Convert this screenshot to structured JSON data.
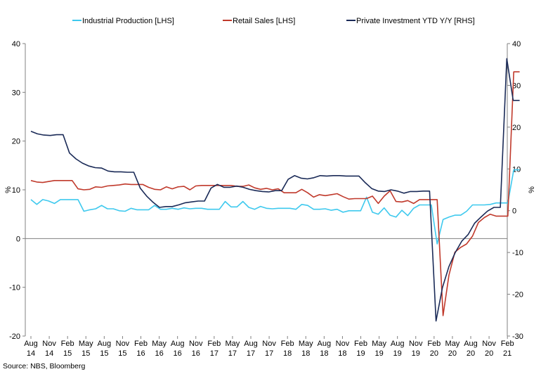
{
  "source": "Source: NBS, Bloomberg",
  "colors": {
    "industrial": "#3ec9ee",
    "retail": "#c0392b",
    "investment": "#1a2a57",
    "axis": "#808080"
  },
  "chart_data": {
    "type": "line",
    "title": "",
    "legend": "top",
    "grid": false,
    "x_labels": [
      [
        "Aug",
        "14"
      ],
      [
        "Nov",
        "14"
      ],
      [
        "Feb",
        "15"
      ],
      [
        "May",
        "15"
      ],
      [
        "Aug",
        "15"
      ],
      [
        "Nov",
        "15"
      ],
      [
        "Feb",
        "16"
      ],
      [
        "May",
        "16"
      ],
      [
        "Aug",
        "16"
      ],
      [
        "Nov",
        "16"
      ],
      [
        "Feb",
        "17"
      ],
      [
        "May",
        "17"
      ],
      [
        "Aug",
        "17"
      ],
      [
        "Nov",
        "17"
      ],
      [
        "Feb",
        "18"
      ],
      [
        "May",
        "18"
      ],
      [
        "Aug",
        "18"
      ],
      [
        "Nov",
        "18"
      ],
      [
        "Feb",
        "19"
      ],
      [
        "May",
        "19"
      ],
      [
        "Aug",
        "19"
      ],
      [
        "Nov",
        "19"
      ],
      [
        "Feb",
        "20"
      ],
      [
        "May",
        "20"
      ],
      [
        "Aug",
        "20"
      ],
      [
        "Nov",
        "20"
      ],
      [
        "Feb",
        "21"
      ]
    ],
    "x_start_month": "2014-08",
    "left_axis": {
      "label": "%",
      "ylim": [
        -20,
        40
      ],
      "ticks": [
        -20,
        -10,
        0,
        10,
        20,
        30,
        40
      ]
    },
    "right_axis": {
      "label": "%",
      "ylim": [
        -30,
        40
      ],
      "ticks": [
        -30,
        -20,
        -10,
        0,
        10,
        20,
        30,
        40
      ]
    },
    "series": [
      {
        "name": "Industrial Production [LHS]",
        "axis": "left",
        "color_key": "industrial",
        "values": [
          8.0,
          7.0,
          8.0,
          7.7,
          7.2,
          8.0,
          8.0,
          8.0,
          8.0,
          5.6,
          5.9,
          6.1,
          6.8,
          6.1,
          6.1,
          5.7,
          5.6,
          6.2,
          5.9,
          5.9,
          5.9,
          6.8,
          6.0,
          6.0,
          6.2,
          6.0,
          6.3,
          6.1,
          6.2,
          6.2,
          6.0,
          6.0,
          6.0,
          7.6,
          6.5,
          6.5,
          7.6,
          6.4,
          6.0,
          6.6,
          6.2,
          6.1,
          6.2,
          6.2,
          6.2,
          6.0,
          7.0,
          6.8,
          6.0,
          6.0,
          6.1,
          5.8,
          6.0,
          5.4,
          5.7,
          5.7,
          5.7,
          8.5,
          5.4,
          5.0,
          6.3,
          4.8,
          4.4,
          5.8,
          4.7,
          6.2,
          6.9,
          6.9,
          6.9,
          -1.1,
          3.9,
          4.4,
          4.8,
          4.8,
          5.6,
          6.9,
          6.9,
          6.9,
          7.0,
          7.3,
          7.3,
          7.3,
          14.1,
          14.1
        ],
        "markers": false
      },
      {
        "name": "Retail Sales [LHS]",
        "axis": "left",
        "color_key": "retail",
        "values": [
          11.9,
          11.6,
          11.5,
          11.7,
          11.9,
          11.9,
          11.9,
          11.9,
          10.2,
          10.0,
          10.1,
          10.6,
          10.5,
          10.8,
          10.9,
          11.0,
          11.2,
          11.1,
          11.1,
          11.1,
          10.5,
          10.1,
          10.0,
          10.6,
          10.2,
          10.6,
          10.7,
          10.0,
          10.8,
          10.9,
          10.9,
          10.9,
          10.9,
          10.9,
          10.9,
          10.7,
          10.7,
          11.0,
          10.4,
          10.1,
          10.3,
          10.0,
          10.2,
          9.4,
          9.4,
          9.4,
          10.1,
          9.4,
          8.5,
          9.0,
          8.8,
          9.0,
          9.2,
          8.6,
          8.1,
          8.2,
          8.2,
          8.2,
          8.7,
          7.2,
          8.7,
          9.8,
          7.6,
          7.5,
          7.8,
          7.2,
          8.0,
          8.0,
          8.0,
          8.0,
          -15.8,
          -7.5,
          -2.8,
          -1.8,
          -1.1,
          0.5,
          3.3,
          4.3,
          5.0,
          4.6,
          4.6,
          4.6,
          34.2,
          34.2
        ],
        "markers": false
      },
      {
        "name": "Private Investment YTD Y/Y [RHS]",
        "axis": "right",
        "color_key": "investment",
        "values": [
          19.0,
          18.4,
          18.1,
          18.0,
          18.2,
          18.2,
          13.8,
          12.4,
          11.4,
          10.7,
          10.3,
          10.2,
          9.5,
          9.3,
          9.3,
          9.2,
          9.2,
          5.4,
          3.5,
          2.0,
          0.8,
          1.0,
          1.0,
          1.4,
          1.9,
          2.1,
          2.3,
          2.3,
          5.4,
          6.3,
          5.6,
          5.6,
          5.9,
          5.6,
          5.1,
          4.8,
          4.6,
          4.5,
          4.8,
          4.8,
          7.5,
          8.4,
          7.8,
          7.6,
          7.9,
          8.4,
          8.3,
          8.4,
          8.4,
          8.3,
          8.3,
          8.3,
          6.7,
          5.3,
          4.7,
          4.6,
          5.0,
          4.7,
          4.2,
          4.6,
          4.6,
          4.7,
          4.7,
          -26.4,
          -18.4,
          -13.4,
          -10.0,
          -7.3,
          -5.7,
          -3.0,
          -1.5,
          -0.1,
          0.8,
          0.8,
          36.4,
          26.4,
          26.4
        ],
        "markers": false
      }
    ]
  }
}
